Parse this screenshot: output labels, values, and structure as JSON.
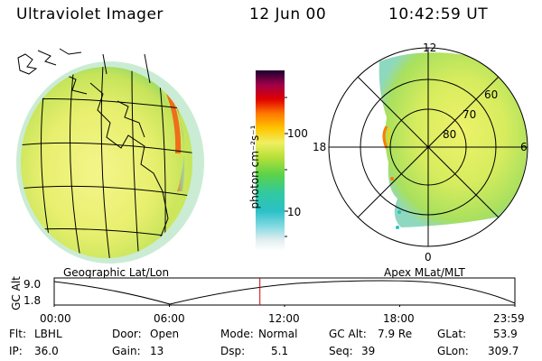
{
  "header": {
    "title": "Ultraviolet Imager",
    "date": "12 Jun 00",
    "time": "10:42:59 UT"
  },
  "colorbar": {
    "unit_label": "photon cm⁻²s⁻¹",
    "tick_100": "100",
    "tick_10": "10"
  },
  "left_panel": {
    "caption": "Geographic Lat/Lon"
  },
  "right_panel": {
    "caption": "Apex MLat/MLT",
    "label_12": "12",
    "label_18": "18",
    "label_6": "6",
    "label_0": "0",
    "label_60": "60",
    "label_70": "70",
    "label_80": "80"
  },
  "altitude_plot": {
    "axis_label": "GC Alt",
    "y_high": "9.0",
    "y_low": "1.8",
    "time_ticks": [
      "00:00",
      "06:00",
      "12:00",
      "18:00",
      "23:59"
    ],
    "current_time_hours": 10.716
  },
  "info": {
    "filter_label": "Flt:",
    "filter_value": "LBHL",
    "ip_label": "IP:",
    "ip_value": "36.0",
    "door_label": "Door:",
    "door_value": "Open",
    "gain_label": "Gain:",
    "gain_value": "13",
    "mode_label": "Mode:",
    "mode_value": "Normal",
    "dsp_label": "Dsp:",
    "dsp_value": "5.1",
    "gcalt_label": "GC Alt:",
    "gcalt_value": "7.9 Re",
    "seq_label": "Seq:",
    "seq_value": "39",
    "glat_label": "GLat:",
    "glat_value": "53.9",
    "glon_label": "GLon:",
    "glon_value": "309.7"
  },
  "colors": {
    "background": "#ffffff",
    "marker": "#d40000",
    "plot_line": "#000000"
  }
}
